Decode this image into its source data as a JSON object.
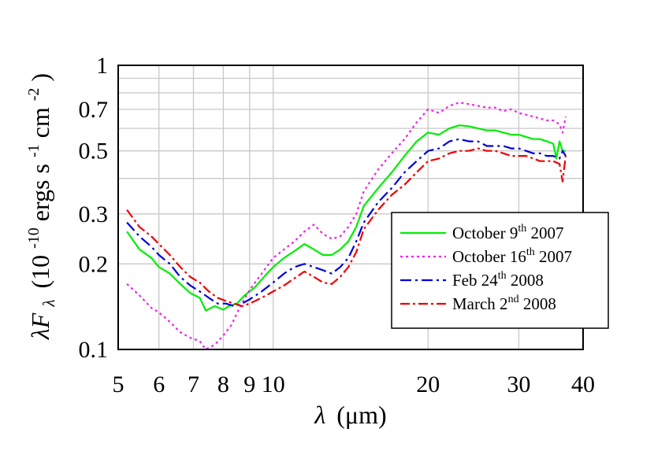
{
  "chart_data": {
    "type": "line",
    "xlabel": {
      "symbol": "λ",
      "unit": "(μm)"
    },
    "ylabel": {
      "symbol": "λF",
      "subscript": "λ",
      "unit_prefix": "(10",
      "exp": "-10",
      "unit_mid": "ergs s",
      "exp2": "-1",
      "unit_mid2": " cm",
      "exp3": "-2",
      "unit_suffix": ")"
    },
    "x_scale": "log",
    "y_scale": "log",
    "xlim": [
      5,
      40
    ],
    "ylim": [
      0.1,
      1
    ],
    "grid": true,
    "x_ticks": [
      {
        "value": 5,
        "label": "5"
      },
      {
        "value": 6,
        "label": "6"
      },
      {
        "value": 7,
        "label": "7"
      },
      {
        "value": 8,
        "label": "8"
      },
      {
        "value": 9,
        "label": "9"
      },
      {
        "value": 10,
        "label": "10"
      },
      {
        "value": 20,
        "label": "20"
      },
      {
        "value": 30,
        "label": "30"
      },
      {
        "value": 40,
        "label": "40"
      }
    ],
    "y_ticks": [
      {
        "value": 0.1,
        "label": "0.1"
      },
      {
        "value": 0.2,
        "label": "0.2"
      },
      {
        "value": 0.3,
        "label": "0.3"
      },
      {
        "value": 0.5,
        "label": "0.5"
      },
      {
        "value": 0.7,
        "label": "0.7"
      },
      {
        "value": 1,
        "label": "1"
      }
    ],
    "x_grid": [
      5,
      6,
      7,
      8,
      9,
      10,
      20,
      30,
      40
    ],
    "y_grid": [
      0.1,
      0.2,
      0.3,
      0.4,
      0.5,
      0.6,
      0.7,
      0.8,
      0.9,
      1
    ],
    "legend": {
      "position": "lower-right"
    },
    "series": [
      {
        "name": {
          "pre": "October 9",
          "sup": "th",
          "post": " 2007"
        },
        "color": "#00ee00",
        "dash": "",
        "x": [
          5.2,
          5.5,
          5.8,
          6.0,
          6.3,
          6.6,
          6.9,
          7.2,
          7.4,
          7.7,
          8.0,
          8.2,
          8.5,
          8.8,
          9.2,
          9.6,
          10.0,
          10.5,
          11.0,
          11.5,
          12.0,
          12.5,
          13.0,
          13.5,
          14.0,
          14.5,
          15.0,
          16.0,
          17.0,
          18.0,
          19.0,
          20.0,
          21.0,
          22.0,
          23.0,
          24.0,
          25.0,
          26.0,
          27.0,
          28.0,
          29.0,
          30.0,
          31.0,
          32.0,
          33.0,
          34.0,
          35.0,
          35.5,
          36.0,
          36.5,
          37.0
        ],
        "y": [
          0.26,
          0.225,
          0.21,
          0.195,
          0.185,
          0.17,
          0.158,
          0.152,
          0.137,
          0.142,
          0.138,
          0.142,
          0.145,
          0.155,
          0.165,
          0.18,
          0.195,
          0.21,
          0.222,
          0.235,
          0.225,
          0.215,
          0.215,
          0.225,
          0.24,
          0.27,
          0.32,
          0.37,
          0.42,
          0.48,
          0.54,
          0.58,
          0.57,
          0.6,
          0.615,
          0.61,
          0.6,
          0.59,
          0.59,
          0.58,
          0.57,
          0.57,
          0.56,
          0.55,
          0.55,
          0.54,
          0.53,
          0.47,
          0.54,
          0.5,
          0.5
        ]
      },
      {
        "name": {
          "pre": "October 16",
          "sup": "th",
          "post": " 2007"
        },
        "color": "#ee22ee",
        "dash": "3,4",
        "x": [
          5.2,
          5.5,
          5.8,
          6.0,
          6.3,
          6.6,
          6.9,
          7.2,
          7.4,
          7.7,
          8.0,
          8.3,
          8.6,
          9.0,
          9.5,
          10.0,
          10.5,
          11.0,
          11.5,
          12.0,
          12.5,
          13.0,
          13.5,
          14.0,
          14.5,
          15.0,
          16.0,
          17.0,
          18.0,
          19.0,
          20.0,
          21.0,
          22.0,
          23.0,
          24.0,
          25.0,
          26.0,
          27.0,
          28.0,
          29.0,
          30.0,
          31.0,
          32.0,
          33.0,
          34.0,
          35.0,
          36.0,
          36.5,
          37.0
        ],
        "y": [
          0.17,
          0.155,
          0.14,
          0.135,
          0.125,
          0.115,
          0.11,
          0.107,
          0.1,
          0.104,
          0.112,
          0.122,
          0.14,
          0.162,
          0.185,
          0.21,
          0.225,
          0.24,
          0.26,
          0.275,
          0.255,
          0.245,
          0.25,
          0.27,
          0.3,
          0.36,
          0.43,
          0.49,
          0.55,
          0.63,
          0.7,
          0.68,
          0.72,
          0.74,
          0.73,
          0.72,
          0.71,
          0.71,
          0.69,
          0.7,
          0.68,
          0.67,
          0.66,
          0.65,
          0.64,
          0.64,
          0.62,
          0.58,
          0.66
        ]
      },
      {
        "name": {
          "pre": "Feb 24",
          "sup": "th",
          "post": " 2008"
        },
        "color": "#0000dd",
        "dash": "14,5,3,5",
        "x": [
          5.2,
          5.5,
          5.8,
          6.0,
          6.3,
          6.6,
          6.9,
          7.2,
          7.5,
          7.8,
          8.1,
          8.4,
          8.7,
          9.0,
          9.5,
          10.0,
          10.5,
          11.0,
          11.5,
          12.0,
          12.5,
          13.0,
          13.5,
          14.0,
          14.5,
          15.0,
          16.0,
          17.0,
          18.0,
          19.0,
          20.0,
          21.0,
          22.0,
          23.0,
          24.0,
          25.0,
          26.0,
          27.0,
          28.0,
          29.0,
          30.0,
          31.0,
          32.0,
          33.0,
          34.0,
          35.0,
          36.0,
          36.5,
          37.0
        ],
        "y": [
          0.28,
          0.25,
          0.23,
          0.215,
          0.2,
          0.18,
          0.168,
          0.16,
          0.152,
          0.145,
          0.145,
          0.142,
          0.145,
          0.15,
          0.16,
          0.172,
          0.185,
          0.195,
          0.2,
          0.195,
          0.19,
          0.185,
          0.195,
          0.21,
          0.24,
          0.28,
          0.33,
          0.37,
          0.42,
          0.46,
          0.5,
          0.51,
          0.54,
          0.55,
          0.54,
          0.54,
          0.52,
          0.52,
          0.52,
          0.51,
          0.51,
          0.5,
          0.49,
          0.49,
          0.48,
          0.48,
          0.47,
          0.5,
          0.48
        ]
      },
      {
        "name": {
          "pre": "March 2",
          "sup": "nd",
          "post": " 2008"
        },
        "color": "#ee0000",
        "dash": "12,4,3,4",
        "x": [
          5.2,
          5.5,
          5.8,
          6.0,
          6.3,
          6.6,
          6.9,
          7.2,
          7.5,
          7.8,
          8.1,
          8.4,
          8.7,
          9.0,
          9.5,
          10.0,
          10.5,
          11.0,
          11.5,
          12.0,
          12.5,
          13.0,
          13.5,
          14.0,
          14.5,
          15.0,
          16.0,
          17.0,
          18.0,
          19.0,
          20.0,
          21.0,
          22.0,
          23.0,
          24.0,
          25.0,
          26.0,
          27.0,
          28.0,
          29.0,
          30.0,
          31.0,
          32.0,
          33.0,
          34.0,
          35.0,
          36.0,
          36.5,
          37.0
        ],
        "y": [
          0.31,
          0.27,
          0.25,
          0.235,
          0.215,
          0.195,
          0.18,
          0.172,
          0.16,
          0.152,
          0.148,
          0.145,
          0.142,
          0.145,
          0.152,
          0.16,
          0.168,
          0.178,
          0.188,
          0.18,
          0.172,
          0.17,
          0.18,
          0.195,
          0.22,
          0.265,
          0.31,
          0.35,
          0.38,
          0.42,
          0.46,
          0.47,
          0.49,
          0.5,
          0.5,
          0.51,
          0.5,
          0.5,
          0.49,
          0.48,
          0.48,
          0.48,
          0.47,
          0.46,
          0.46,
          0.46,
          0.45,
          0.39,
          0.48
        ]
      }
    ]
  }
}
